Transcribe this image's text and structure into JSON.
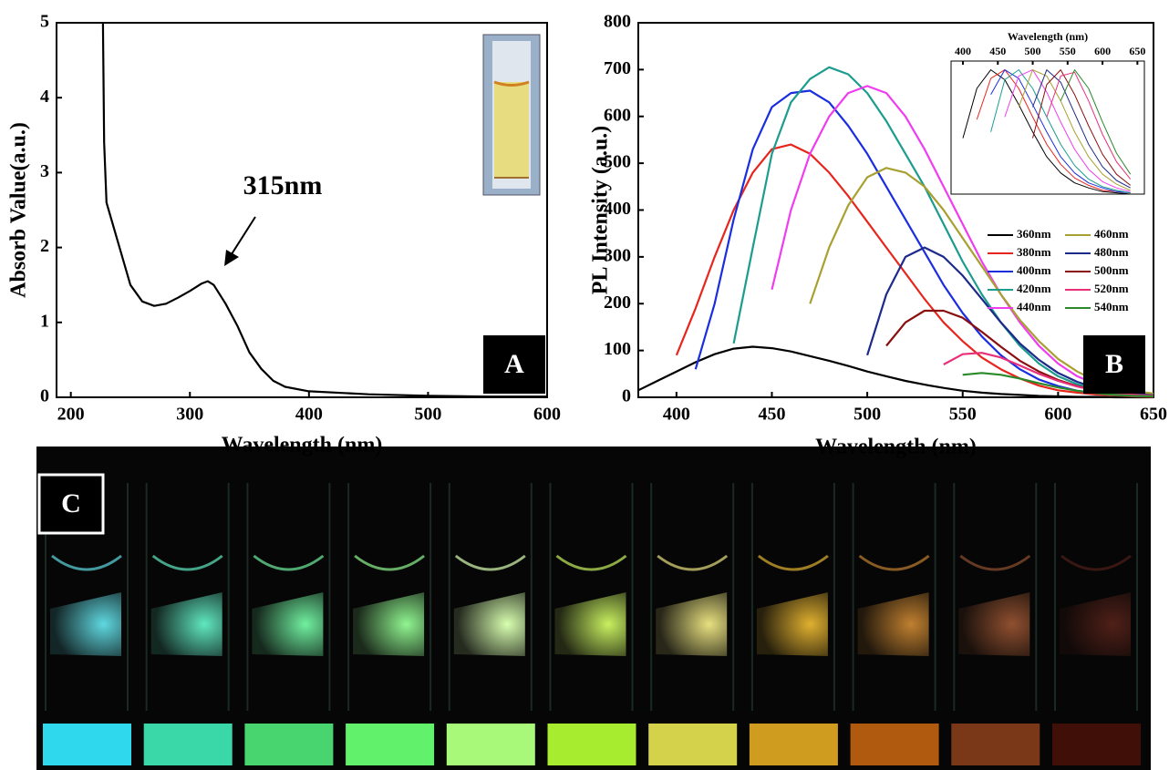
{
  "chart_data": [
    {
      "type": "line",
      "panel_label": "A",
      "xlabel": "Wavelength (nm)",
      "ylabel": "Absorb Value(a.u.)",
      "annotation": "315nm",
      "color": "#000000",
      "x": [
        227,
        228,
        230,
        240,
        250,
        260,
        270,
        280,
        290,
        300,
        310,
        315,
        320,
        330,
        340,
        350,
        360,
        370,
        380,
        400,
        450,
        500,
        550,
        600
      ],
      "values": [
        5,
        3.4,
        2.6,
        2.05,
        1.5,
        1.28,
        1.22,
        1.25,
        1.33,
        1.42,
        1.52,
        1.55,
        1.5,
        1.25,
        0.95,
        0.6,
        0.38,
        0.22,
        0.14,
        0.08,
        0.04,
        0.02,
        0.01,
        0.01
      ],
      "xlim": [
        188,
        600
      ],
      "ylim": [
        0,
        5
      ],
      "xticks": [
        200,
        300,
        400,
        500,
        600
      ],
      "yticks": [
        0,
        1,
        2,
        3,
        4,
        5
      ]
    },
    {
      "type": "line",
      "panel_label": "B",
      "xlabel": "Wavelength (nm)",
      "ylabel": "PL Intensity (a.u.)",
      "legend": "right",
      "x": [
        380,
        390,
        400,
        410,
        420,
        430,
        440,
        450,
        460,
        470,
        480,
        490,
        500,
        510,
        520,
        530,
        540,
        550,
        560,
        570,
        580,
        590,
        600,
        610,
        620,
        630,
        640,
        650
      ],
      "series": [
        {
          "name": "360nm",
          "color": "#000000",
          "values": [
            15,
            35,
            55,
            75,
            92,
            104,
            108,
            105,
            98,
            88,
            78,
            67,
            55,
            45,
            35,
            27,
            20,
            14,
            10,
            7,
            5,
            3,
            2,
            1,
            1,
            0,
            0,
            0
          ]
        },
        {
          "name": "380nm",
          "color": "#e8251d",
          "values": [
            null,
            null,
            90,
            190,
            300,
            400,
            480,
            530,
            540,
            520,
            480,
            430,
            375,
            320,
            265,
            210,
            160,
            120,
            85,
            60,
            40,
            25,
            15,
            10,
            6,
            4,
            2,
            1
          ]
        },
        {
          "name": "400nm",
          "color": "#1a2ee0",
          "values": [
            null,
            null,
            null,
            60,
            200,
            380,
            530,
            620,
            650,
            655,
            630,
            580,
            520,
            450,
            380,
            310,
            240,
            180,
            130,
            90,
            60,
            38,
            24,
            14,
            9,
            5,
            3,
            2
          ]
        },
        {
          "name": "420nm",
          "color": "#1b9c8e",
          "values": [
            null,
            null,
            null,
            null,
            null,
            115,
            320,
            520,
            630,
            680,
            705,
            690,
            650,
            590,
            520,
            450,
            370,
            290,
            220,
            160,
            110,
            72,
            45,
            28,
            17,
            10,
            6,
            3
          ]
        },
        {
          "name": "440nm",
          "color": "#f03cf0",
          "values": [
            null,
            null,
            null,
            null,
            null,
            null,
            null,
            230,
            400,
            520,
            600,
            650,
            665,
            650,
            600,
            530,
            450,
            370,
            290,
            220,
            160,
            110,
            72,
            45,
            28,
            17,
            10,
            6
          ]
        },
        {
          "name": "460nm",
          "color": "#a8a030",
          "values": [
            null,
            null,
            null,
            null,
            null,
            null,
            null,
            null,
            null,
            200,
            320,
            410,
            470,
            490,
            480,
            450,
            400,
            340,
            280,
            220,
            165,
            120,
            82,
            55,
            35,
            22,
            13,
            8
          ]
        },
        {
          "name": "480nm",
          "color": "#1c2a8a",
          "values": [
            null,
            null,
            null,
            null,
            null,
            null,
            null,
            null,
            null,
            null,
            null,
            null,
            90,
            220,
            300,
            320,
            300,
            260,
            210,
            160,
            115,
            80,
            52,
            33,
            20,
            12,
            7,
            4
          ]
        },
        {
          "name": "500nm",
          "color": "#8a1010",
          "values": [
            null,
            null,
            null,
            null,
            null,
            null,
            null,
            null,
            null,
            null,
            null,
            null,
            null,
            110,
            160,
            185,
            185,
            170,
            140,
            108,
            78,
            55,
            37,
            24,
            15,
            9,
            5,
            3
          ]
        },
        {
          "name": "520nm",
          "color": "#e8307a",
          "values": [
            null,
            null,
            null,
            null,
            null,
            null,
            null,
            null,
            null,
            null,
            null,
            null,
            null,
            null,
            null,
            null,
            70,
            92,
            95,
            85,
            68,
            50,
            35,
            23,
            14,
            8,
            5,
            3
          ]
        },
        {
          "name": "540nm",
          "color": "#2a8a2a",
          "values": [
            null,
            null,
            null,
            null,
            null,
            null,
            null,
            null,
            null,
            null,
            null,
            null,
            null,
            null,
            null,
            null,
            null,
            48,
            52,
            48,
            40,
            30,
            21,
            14,
            9,
            5,
            3,
            2
          ]
        }
      ],
      "xlim": [
        380,
        650
      ],
      "ylim": [
        0,
        800
      ],
      "xticks": [
        400,
        450,
        500,
        550,
        600,
        650
      ],
      "yticks": [
        0,
        100,
        200,
        300,
        400,
        500,
        600,
        700,
        800
      ]
    },
    {
      "type": "line",
      "xlabel": "Wavelength (nm)",
      "xaxis": "top",
      "x": [
        400,
        420,
        440,
        460,
        480,
        500,
        520,
        540,
        560,
        580,
        600,
        620,
        640
      ],
      "series": [
        {
          "color": "#000000",
          "values": [
            0.45,
            0.85,
            1.0,
            0.92,
            0.72,
            0.5,
            0.3,
            0.17,
            0.09,
            0.05,
            0.02,
            0.01,
            0
          ]
        },
        {
          "color": "#e8251d",
          "values": [
            null,
            0.6,
            0.93,
            1.0,
            0.85,
            0.62,
            0.4,
            0.24,
            0.13,
            0.07,
            0.03,
            0.02,
            0.01
          ]
        },
        {
          "color": "#1a2ee0",
          "values": [
            null,
            null,
            0.8,
            1.0,
            0.93,
            0.72,
            0.5,
            0.3,
            0.17,
            0.09,
            0.05,
            0.02,
            0.01
          ]
        },
        {
          "color": "#1b9c8e",
          "values": [
            null,
            null,
            0.5,
            0.92,
            1.0,
            0.85,
            0.62,
            0.4,
            0.23,
            0.12,
            0.06,
            0.03,
            0.01
          ]
        },
        {
          "color": "#f03cf0",
          "values": [
            null,
            null,
            null,
            0.62,
            0.95,
            1.0,
            0.82,
            0.58,
            0.36,
            0.2,
            0.1,
            0.05,
            0.02
          ]
        },
        {
          "color": "#a8a030",
          "values": [
            null,
            null,
            null,
            null,
            0.7,
            1.0,
            0.95,
            0.75,
            0.5,
            0.3,
            0.16,
            0.08,
            0.03
          ]
        },
        {
          "color": "#1c2a8a",
          "values": [
            null,
            null,
            null,
            null,
            null,
            0.7,
            1.0,
            0.9,
            0.65,
            0.4,
            0.22,
            0.11,
            0.05
          ]
        },
        {
          "color": "#8a1010",
          "values": [
            null,
            null,
            null,
            null,
            null,
            0.45,
            0.88,
            1.0,
            0.8,
            0.55,
            0.32,
            0.16,
            0.07
          ]
        },
        {
          "color": "#e8307a",
          "values": [
            null,
            null,
            null,
            null,
            null,
            null,
            0.62,
            0.95,
            0.98,
            0.75,
            0.48,
            0.26,
            0.12
          ]
        },
        {
          "color": "#2a8a2a",
          "values": [
            null,
            null,
            null,
            null,
            null,
            null,
            null,
            0.75,
            1.0,
            0.85,
            0.58,
            0.33,
            0.16
          ]
        }
      ],
      "xlim": [
        383,
        660
      ],
      "ylim": [
        0,
        1.07
      ],
      "xticks": [
        400,
        450,
        500,
        550,
        600,
        650
      ]
    }
  ],
  "panel_c": {
    "label": "C",
    "glow_colors": [
      "#5fd8e0",
      "#60e8c0",
      "#70f0a0",
      "#90f590",
      "#d8ffb0",
      "#c8f060",
      "#e8e080",
      "#e0b030",
      "#c08030",
      "#905030",
      "#502018"
    ],
    "swatch_colors": [
      "#2fd8ec",
      "#3ad7a8",
      "#48d46e",
      "#62f16a",
      "#a8f87a",
      "#a8ec30",
      "#d4d24a",
      "#d09c20",
      "#b05a10",
      "#7a3818",
      "#401008"
    ]
  }
}
